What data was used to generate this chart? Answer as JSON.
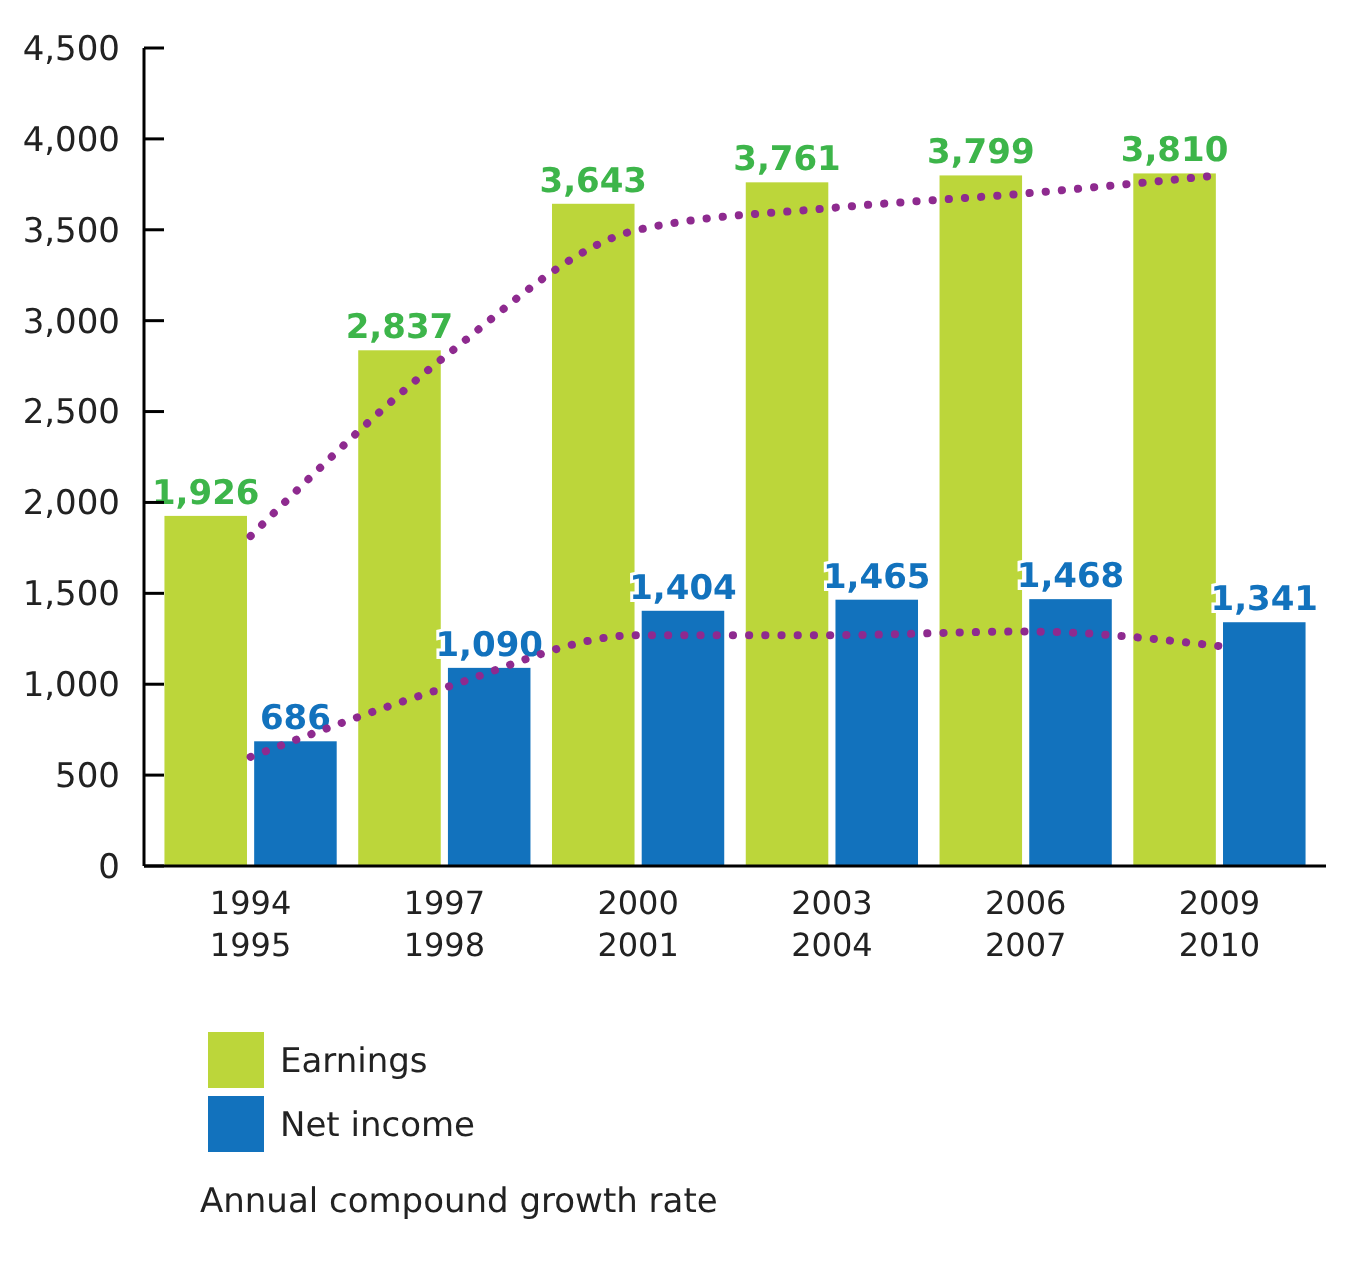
{
  "chart_data": {
    "type": "bar",
    "categories": [
      "1994\n1995",
      "1997\n1998",
      "2000\n2001",
      "2003\n2004",
      "2006\n2007",
      "2009\n2010"
    ],
    "series": [
      {
        "name": "Earnings",
        "color": "#bcd63a",
        "values": [
          1926,
          2837,
          3643,
          3761,
          3799,
          3810
        ],
        "value_labels": [
          "1,926",
          "2,837",
          "3,643",
          "3,761",
          "3,799",
          "3,810"
        ]
      },
      {
        "name": "Net income",
        "color": "#1272bd",
        "values": [
          686,
          1090,
          1404,
          1465,
          1468,
          1341
        ],
        "value_labels": [
          "686",
          "1,090",
          "1,404",
          "1,465",
          "1,468",
          "1,341"
        ]
      },
      {
        "type": "line",
        "color": "#8e2a8f",
        "line_style": "dotted",
        "values": [
          1815,
          2800,
          3500,
          3620,
          3700,
          3800
        ]
      },
      {
        "type": "line",
        "color": "#8e2a8f",
        "line_style": "dotted",
        "values": [
          600,
          980,
          1270,
          1270,
          1290,
          1210
        ]
      }
    ],
    "ylim": [
      0,
      4500
    ],
    "yticks": [
      {
        "value": 0,
        "label": "0"
      },
      {
        "value": 500,
        "label": "500"
      },
      {
        "value": 1000,
        "label": "1,000"
      },
      {
        "value": 1500,
        "label": "1,500"
      },
      {
        "value": 2000,
        "label": "2,000"
      },
      {
        "value": 2500,
        "label": "2,500"
      },
      {
        "value": 3000,
        "label": "3,000"
      },
      {
        "value": 3500,
        "label": "3,500"
      },
      {
        "value": 4000,
        "label": "4,000"
      },
      {
        "value": 4500,
        "label": "4,500"
      }
    ],
    "grid": false,
    "legend": "bottom left",
    "annotations": [
      "Annual compound growth rate"
    ]
  }
}
